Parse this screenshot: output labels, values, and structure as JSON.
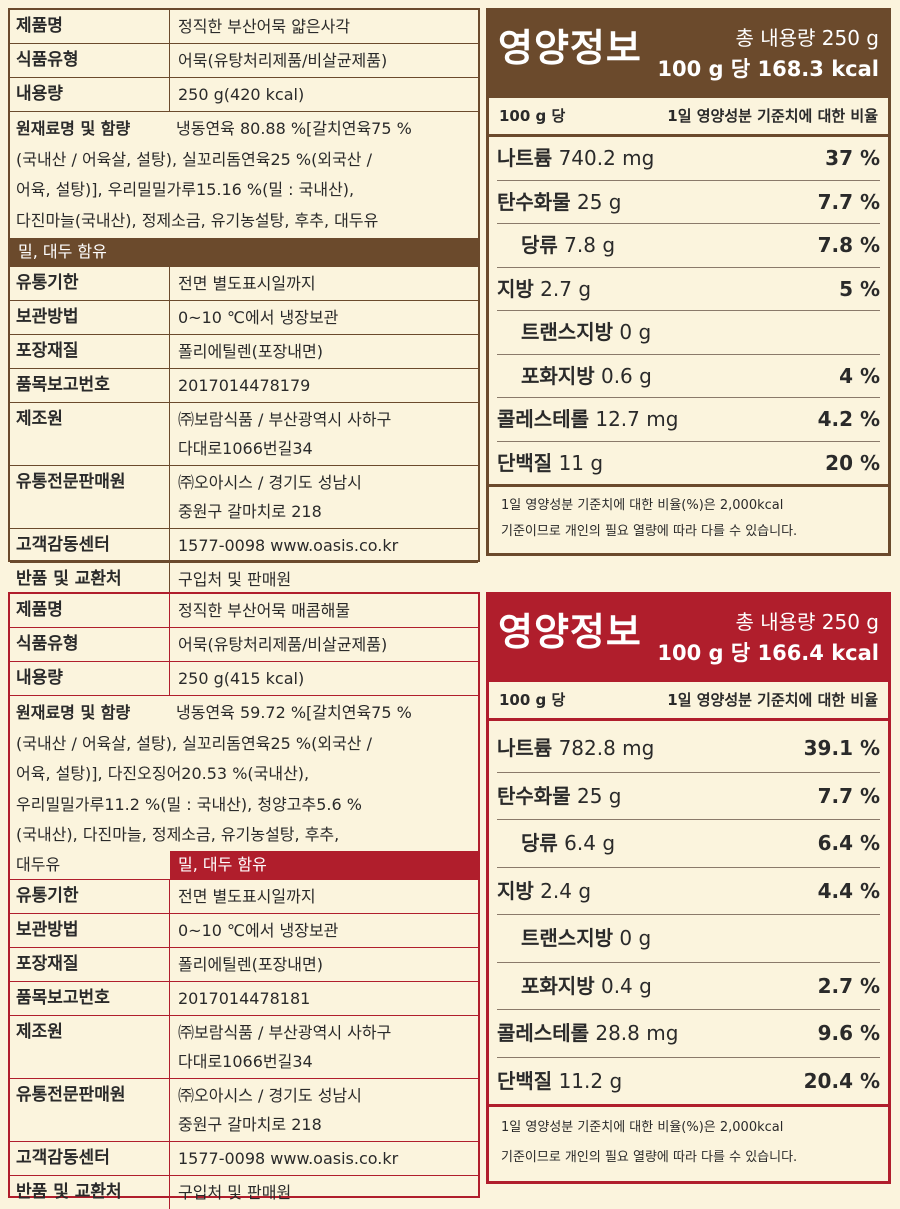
{
  "products": [
    {
      "info": {
        "name_k": "제품명",
        "name_v": "정직한 부산어묵 얇은사각",
        "type_k": "식품유형",
        "type_v": "어묵(유탕처리제품/비살균제품)",
        "vol_k": "내용량",
        "vol_v": "250 g(420 kcal)",
        "ing_k": "원재료명 및 함량",
        "ing_lines": [
          "냉동연육 80.88 %[갈치연육75 %",
          "(국내산 / 어육살, 설탕), 실꼬리돔연육25 %(외국산 /",
          "어육, 설탕)], 우리밀밀가루15.16 %(밀 : 국내산),",
          "다진마늘(국내산), 정제소금, 유기농설탕, 후추, 대두유"
        ],
        "allergy": "밀, 대두 함유",
        "exp_k": "유통기한",
        "exp_v": "전면 별도표시일까지",
        "store_k": "보관방법",
        "store_v": "0~10 ℃에서 냉장보관",
        "pack_k": "포장재질",
        "pack_v": "폴리에틸렌(포장내면)",
        "reg_k": "품목보고번호",
        "reg_v": "2017014478179",
        "mfr_k": "제조원",
        "mfr_v1": "㈜보람식품 / 부산광역시 사하구",
        "mfr_v2": "다대로1066번길34",
        "dist_k": "유통전문판매원",
        "dist_v1": "㈜오아시스 / 경기도 성남시",
        "dist_v2": "중원구 갈마치로 218",
        "cs_k": "고객감동센터",
        "cs_v": "1577-0098  www.oasis.co.kr",
        "ret_k": "반품 및 교환처",
        "ret_v": "구입처 및 판매원"
      },
      "nutrition": {
        "title": "영양정보",
        "total": "총 내용량 250 g",
        "per": "100 g 당",
        "kcal": "168.3 kcal",
        "sub_left": "100 g 당",
        "sub_right": "1일 영양성분 기준치에 대한 비율",
        "rows": [
          {
            "name": "나트륨",
            "amt": "740.2 mg",
            "pct": "37 %",
            "indent": false
          },
          {
            "name": "탄수화물",
            "amt": "25 g",
            "pct": "7.7 %",
            "indent": false
          },
          {
            "name": "당류",
            "amt": "7.8 g",
            "pct": "7.8 %",
            "indent": true
          },
          {
            "name": "지방",
            "amt": "2.7 g",
            "pct": "5 %",
            "indent": false
          },
          {
            "name": "트랜스지방",
            "amt": "0 g",
            "pct": "",
            "indent": true
          },
          {
            "name": "포화지방",
            "amt": "0.6 g",
            "pct": "4 %",
            "indent": true
          },
          {
            "name": "콜레스테롤",
            "amt": "12.7 mg",
            "pct": "4.2 %",
            "indent": false
          },
          {
            "name": "단백질",
            "amt": "11 g",
            "pct": "20 %",
            "indent": false
          }
        ],
        "foot1": "1일 영양성분 기준치에 대한 비율(%)은 2,000kcal",
        "foot2": "기준이므로 개인의 필요 열량에 따라 다를 수 있습니다."
      }
    },
    {
      "info": {
        "name_k": "제품명",
        "name_v": "정직한 부산어묵 매콤해물",
        "type_k": "식품유형",
        "type_v": "어묵(유탕처리제품/비살균제품)",
        "vol_k": "내용량",
        "vol_v": "250 g(415 kcal)",
        "ing_k": "원재료명 및 함량",
        "ing_lines": [
          "냉동연육 59.72 %[갈치연육75 %",
          "(국내산 / 어육살, 설탕), 실꼬리돔연육25 %(외국산 /",
          "어육, 설탕)], 다진오징어20.53 %(국내산),",
          "우리밀밀가루11.2 %(밀 : 국내산), 청양고추5.6 %",
          "(국내산), 다진마늘, 정제소금, 유기농설탕, 후추,"
        ],
        "ing_last": "대두유",
        "allergy": "밀, 대두 함유",
        "exp_k": "유통기한",
        "exp_v": "전면 별도표시일까지",
        "store_k": "보관방법",
        "store_v": "0~10 ℃에서 냉장보관",
        "pack_k": "포장재질",
        "pack_v": "폴리에틸렌(포장내면)",
        "reg_k": "품목보고번호",
        "reg_v": "2017014478181",
        "mfr_k": "제조원",
        "mfr_v1": "㈜보람식품 / 부산광역시 사하구",
        "mfr_v2": "다대로1066번길34",
        "dist_k": "유통전문판매원",
        "dist_v1": "㈜오아시스 / 경기도 성남시",
        "dist_v2": "중원구 갈마치로 218",
        "cs_k": "고객감동센터",
        "cs_v": "1577-0098  www.oasis.co.kr",
        "ret_k": "반품 및 교환처",
        "ret_v": "구입처 및 판매원"
      },
      "nutrition": {
        "title": "영양정보",
        "total": "총 내용량 250 g",
        "per": "100 g 당",
        "kcal": "166.4 kcal",
        "sub_left": "100 g 당",
        "sub_right": "1일 영양성분 기준치에 대한 비율",
        "rows": [
          {
            "name": "나트륨",
            "amt": "782.8 mg",
            "pct": "39.1 %",
            "indent": false
          },
          {
            "name": "탄수화물",
            "amt": "25 g",
            "pct": "7.7 %",
            "indent": false
          },
          {
            "name": "당류",
            "amt": "6.4 g",
            "pct": "6.4 %",
            "indent": true
          },
          {
            "name": "지방",
            "amt": "2.4 g",
            "pct": "4.4 %",
            "indent": false
          },
          {
            "name": "트랜스지방",
            "amt": "0 g",
            "pct": "",
            "indent": true
          },
          {
            "name": "포화지방",
            "amt": "0.4 g",
            "pct": "2.7 %",
            "indent": true
          },
          {
            "name": "콜레스테롤",
            "amt": "28.8 mg",
            "pct": "9.6 %",
            "indent": false
          },
          {
            "name": "단백질",
            "amt": "11.2 g",
            "pct": "20.4 %",
            "indent": false
          }
        ],
        "foot1": "1일 영양성분 기준치에 대한 비율(%)은 2,000kcal",
        "foot2": "기준이므로 개인의 필요 열량에 따라 다를 수 있습니다."
      }
    }
  ]
}
